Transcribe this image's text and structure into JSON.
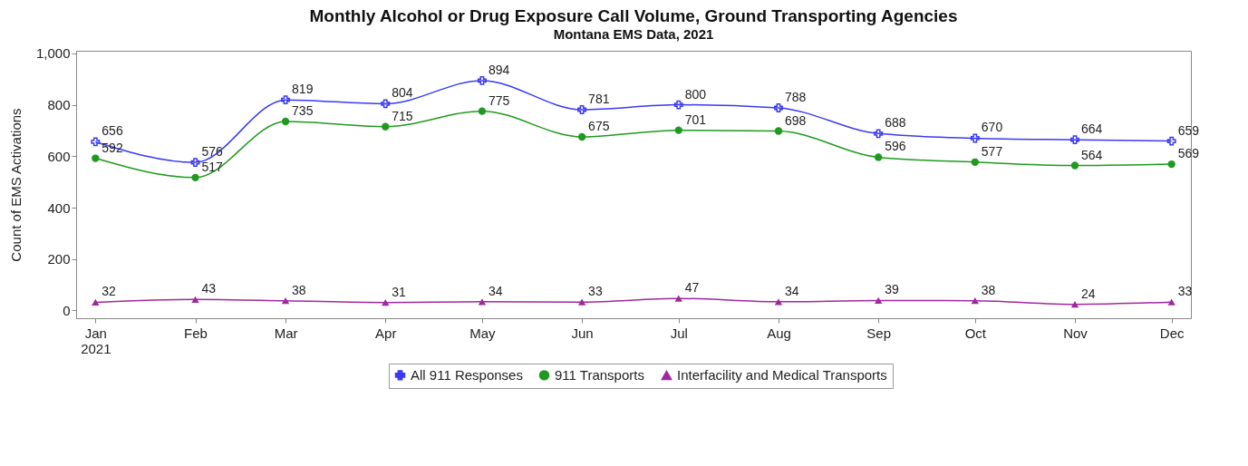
{
  "chart_data": {
    "type": "line",
    "title": "Monthly Alcohol or Drug Exposure Call Volume, Ground Transporting Agencies",
    "subtitle": "Montana EMS Data, 2021",
    "ylabel": "Count of EMS Activations",
    "x": [
      "2021-01",
      "2021-02",
      "2021-03",
      "2021-04",
      "2021-05",
      "2021-06",
      "2021-07",
      "2021-08",
      "2021-09",
      "2021-10",
      "2021-11",
      "2021-12"
    ],
    "xlim": [
      "2020-12-26",
      "2021-12-07"
    ],
    "xticks": [
      {
        "value": "2021-01",
        "label": "Jan\n2021"
      },
      {
        "value": "2021-02",
        "label": "Feb"
      },
      {
        "value": "2021-03",
        "label": "Mar"
      },
      {
        "value": "2021-04",
        "label": "Apr"
      },
      {
        "value": "2021-05",
        "label": "May"
      },
      {
        "value": "2021-06",
        "label": "Jun"
      },
      {
        "value": "2021-07",
        "label": "Jul"
      },
      {
        "value": "2021-08",
        "label": "Aug"
      },
      {
        "value": "2021-09",
        "label": "Sep"
      },
      {
        "value": "2021-10",
        "label": "Oct"
      },
      {
        "value": "2021-11",
        "label": "Nov"
      },
      {
        "value": "2021-12",
        "label": "Dec"
      }
    ],
    "ylim": [
      -30,
      1010
    ],
    "yticks": [
      {
        "value": 0,
        "label": "0"
      },
      {
        "value": 200,
        "label": "200"
      },
      {
        "value": 400,
        "label": "400"
      },
      {
        "value": 600,
        "label": "600"
      },
      {
        "value": 800,
        "label": "800"
      },
      {
        "value": 1000,
        "label": "1,000"
      }
    ],
    "series": [
      {
        "name": "All 911 Responses",
        "color": "#3a3af2",
        "marker": "cross",
        "values": [
          656,
          576,
          819,
          804,
          894,
          781,
          800,
          788,
          688,
          670,
          664,
          659
        ]
      },
      {
        "name": "911 Transports",
        "color": "#1f9a1f",
        "marker": "circle",
        "values": [
          592,
          517,
          735,
          715,
          775,
          675,
          701,
          698,
          596,
          577,
          564,
          569
        ]
      },
      {
        "name": "Interfacility and Medical Transports",
        "color": "#a0289e",
        "marker": "triangle",
        "values": [
          32,
          43,
          38,
          31,
          34,
          33,
          47,
          34,
          39,
          38,
          24,
          33
        ]
      }
    ],
    "data_labels": true,
    "grid": false,
    "legend": "bottom"
  }
}
